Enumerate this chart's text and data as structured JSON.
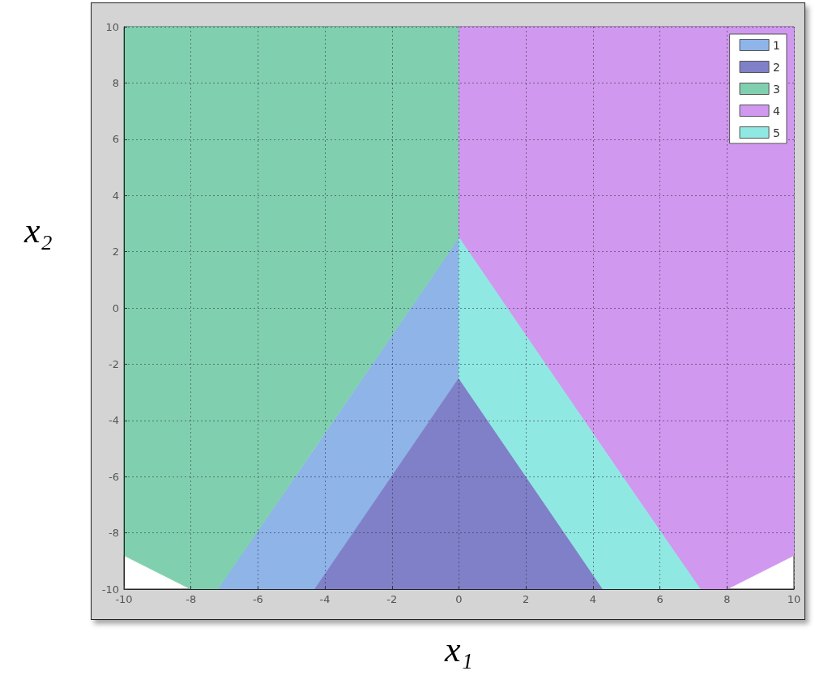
{
  "chart_data": {
    "type": "area",
    "xlabel": "x₁",
    "ylabel": "x₂",
    "xlim": [
      -10,
      10
    ],
    "ylim": [
      -10,
      10
    ],
    "xticks": [
      -10,
      -8,
      -6,
      -4,
      -2,
      0,
      2,
      4,
      6,
      8,
      10
    ],
    "yticks": [
      -10,
      -8,
      -6,
      -4,
      -2,
      0,
      2,
      4,
      6,
      8,
      10
    ],
    "grid": true,
    "legend": "top right",
    "series": [
      {
        "name": "1",
        "color": "#8fb4e8",
        "x": [
          -7.2,
          -4.3,
          0
        ],
        "values": [
          null,
          null,
          null
        ],
        "upper": [
          -10,
          -5,
          2.5
        ],
        "lower": [
          -10,
          -10,
          -2.5
        ]
      },
      {
        "name": "2",
        "color": "#8080c8",
        "x": [
          -4.3,
          0,
          4.3
        ],
        "values": [
          null,
          null,
          null
        ],
        "upper": [
          -10,
          -2.5,
          -10
        ],
        "lower": [
          -10,
          -10,
          -10
        ]
      },
      {
        "name": "3",
        "color": "#80d0b0",
        "x": [
          -10,
          -8,
          -7.2,
          0
        ],
        "values": [
          null,
          null,
          null,
          null
        ],
        "upper": [
          10,
          10,
          10,
          10
        ],
        "lower": [
          -8.8,
          -10,
          -10,
          2.5
        ]
      },
      {
        "name": "4",
        "color": "#d098ee",
        "x": [
          0,
          7.2,
          8,
          10
        ],
        "values": [
          null,
          null,
          null,
          null
        ],
        "upper": [
          10,
          10,
          10,
          10
        ],
        "lower": [
          2.5,
          -10,
          -10,
          -8.8
        ]
      },
      {
        "name": "5",
        "color": "#90e8e2",
        "x": [
          0,
          4.3,
          7.2
        ],
        "values": [
          null,
          null,
          null
        ],
        "upper": [
          2.5,
          -5,
          -10
        ],
        "lower": [
          -2.5,
          -10,
          -10
        ]
      }
    ]
  }
}
